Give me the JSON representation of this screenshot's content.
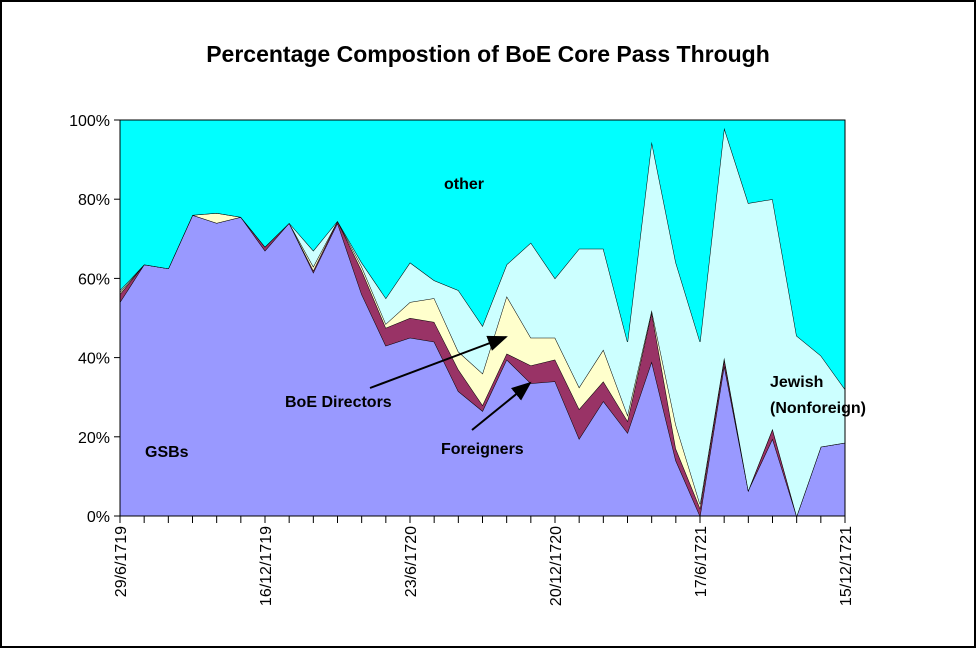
{
  "chart_data": {
    "type": "stacked_area",
    "title": "Percentage Compostion of BoE Core Pass Through",
    "categories": [
      "29/6/1719",
      null,
      null,
      null,
      null,
      null,
      "16/12/1719",
      null,
      null,
      null,
      null,
      null,
      "23/6/1720",
      null,
      null,
      null,
      null,
      null,
      "20/12/1720",
      null,
      null,
      null,
      null,
      null,
      "17/6/1721",
      null,
      null,
      null,
      null,
      null,
      "15/12/1721"
    ],
    "series": [
      {
        "name": "GSBs",
        "color": "#9999ff",
        "values": [
          54,
          63.5,
          62.5,
          76,
          74,
          75.5,
          67,
          74,
          61.5,
          74,
          56,
          43,
          45,
          44,
          31.5,
          26.5,
          39.5,
          33.5,
          34,
          19.5,
          29,
          21,
          39,
          14,
          0,
          38,
          6.5,
          19.5,
          0,
          17.5,
          18.5
        ]
      },
      {
        "name": "Foreigners",
        "color": "#993366",
        "values": [
          2,
          0,
          0,
          0,
          0,
          0,
          1,
          0,
          0.5,
          0.5,
          6,
          4.5,
          5,
          5,
          5.5,
          1.5,
          1.5,
          4.5,
          5.5,
          7.5,
          5,
          3,
          12.5,
          3,
          2,
          1.5,
          0,
          2.5,
          0,
          0,
          0
        ]
      },
      {
        "name": "BoE Directors",
        "color": "#ffffcc",
        "values": [
          0.5,
          0,
          0,
          0,
          2.5,
          0,
          0,
          0,
          1,
          0,
          1,
          1,
          4,
          6,
          4.5,
          8,
          14.5,
          7,
          5.5,
          5.5,
          8,
          1.5,
          0.5,
          6,
          1,
          0.5,
          0,
          0,
          0,
          0,
          0
        ]
      },
      {
        "name": "Jewish\n(Nonforeign)",
        "color": "#ccffff",
        "values": [
          0.5,
          0,
          0,
          0,
          0,
          0,
          0,
          0,
          4,
          0,
          1,
          6.5,
          10,
          4.5,
          15.5,
          12,
          8,
          24,
          15,
          35,
          25.5,
          18.5,
          42.5,
          41,
          41,
          58,
          72.5,
          58,
          45.5,
          23,
          13.5
        ]
      },
      {
        "name": "other",
        "color": "#00ffff",
        "values": [
          43,
          36.5,
          37.5,
          24,
          23.5,
          24.5,
          32,
          26,
          33,
          25.5,
          36,
          45,
          36,
          40.5,
          43,
          52,
          36.5,
          31,
          40,
          32.5,
          32.5,
          56,
          5.5,
          36,
          56,
          2,
          21,
          20,
          54.5,
          59.5,
          68
        ]
      }
    ],
    "ylim": [
      0,
      100
    ],
    "yticks": [
      {
        "value": 0,
        "label": "0%"
      },
      {
        "value": 20,
        "label": "20%"
      },
      {
        "value": 40,
        "label": "40%"
      },
      {
        "value": 60,
        "label": "60%"
      },
      {
        "value": 80,
        "label": "80%"
      },
      {
        "value": 100,
        "label": "100%"
      }
    ]
  }
}
